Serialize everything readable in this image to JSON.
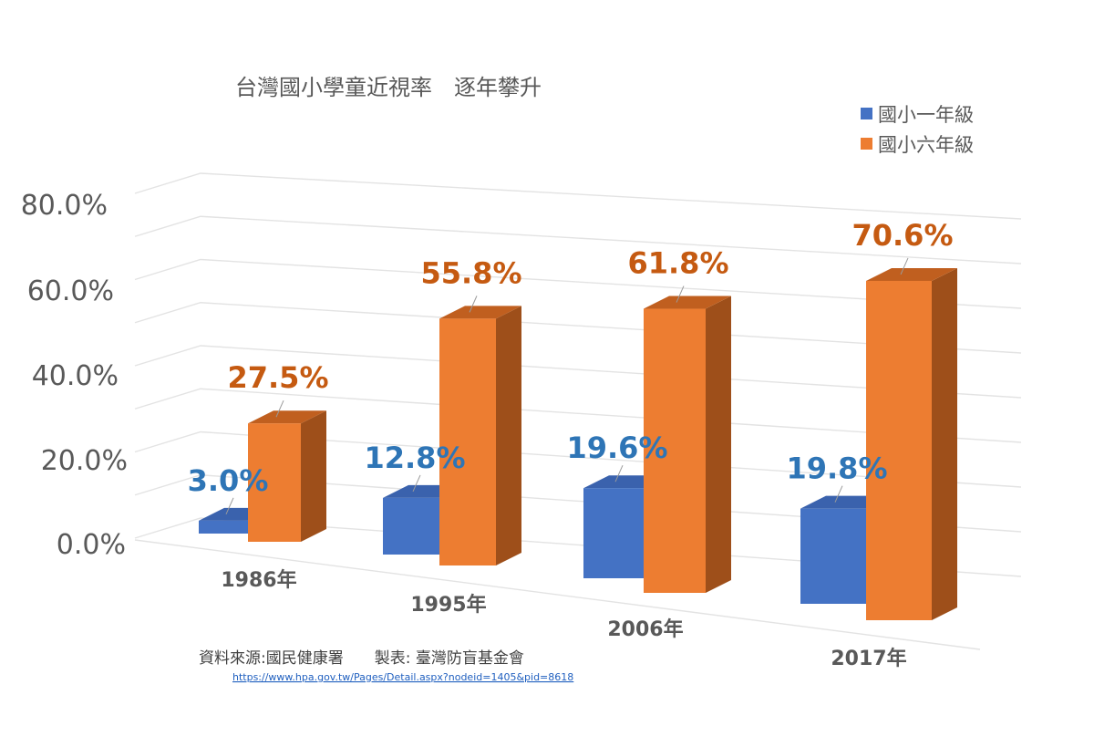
{
  "chart_data": {
    "type": "bar",
    "title": "台灣國小學童近視率　逐年攀升",
    "categories": [
      "1986年",
      "1995年",
      "2006年",
      "2017年"
    ],
    "series": [
      {
        "name": "國小一年級",
        "values": [
          3.0,
          12.8,
          19.6,
          19.8
        ],
        "labels": [
          "3.0%",
          "12.8%",
          "19.6%",
          "19.8%"
        ]
      },
      {
        "name": "國小六年級",
        "values": [
          27.5,
          55.8,
          61.8,
          70.6
        ],
        "labels": [
          "27.5%",
          "55.8%",
          "61.8%",
          "70.6%"
        ]
      }
    ],
    "y_ticks": [
      "0.0%",
      "20.0%",
      "40.0%",
      "60.0%",
      "80.0%"
    ],
    "ylim": [
      0,
      80
    ],
    "grid": true,
    "legend": "top-right",
    "colors": {
      "series1": "#4472c4",
      "series1_side": "#2f5597",
      "series1_top": "#3a62ad",
      "series2": "#ed7d31",
      "series2_side": "#9e4f1a",
      "series2_top": "#c05f1f",
      "label1": "#2e75b6",
      "label2": "#c55a11"
    }
  },
  "source_note": {
    "text": "資料來源:國民健康署　　製表: 臺灣防盲基金會",
    "url": "https://www.hpa.gov.tw/Pages/Detail.aspx?nodeid=1405&pid=8618"
  }
}
